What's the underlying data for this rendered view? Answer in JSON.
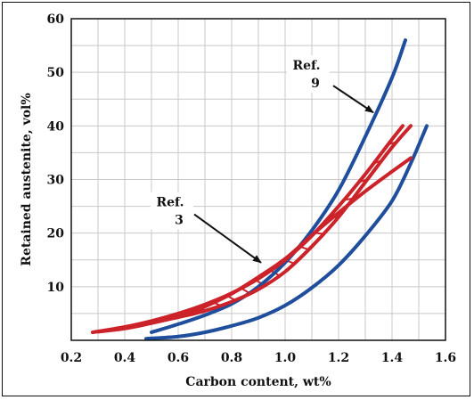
{
  "chart_data": {
    "type": "line",
    "title": "",
    "xlabel": "Carbon content, wt%",
    "ylabel": "Retained austenite, vol%",
    "xlim": [
      0.2,
      1.6
    ],
    "ylim": [
      0,
      60
    ],
    "grid": true,
    "x_ticks": [
      "0.2",
      "0.4",
      "0.6",
      "0.8",
      "1.0",
      "1.2",
      "1.4",
      "1.6"
    ],
    "y_ticks": [
      "10",
      "20",
      "30",
      "40",
      "50",
      "60"
    ],
    "colors": {
      "blue": "#1f4e9c",
      "red": "#cc2229"
    },
    "series": [
      {
        "group": "Ref. 9",
        "color": "blue",
        "points": [
          [
            0.5,
            1.5
          ],
          [
            0.6,
            3
          ],
          [
            0.7,
            4.7
          ],
          [
            0.8,
            6.8
          ],
          [
            0.9,
            10
          ],
          [
            1.0,
            14.5
          ],
          [
            1.1,
            20.5
          ],
          [
            1.2,
            28
          ],
          [
            1.3,
            38
          ],
          [
            1.4,
            49
          ],
          [
            1.45,
            56
          ]
        ]
      },
      {
        "group": "Ref. 9",
        "color": "blue",
        "points": [
          [
            0.48,
            0.3
          ],
          [
            0.6,
            0.7
          ],
          [
            0.7,
            1.5
          ],
          [
            0.8,
            2.7
          ],
          [
            0.9,
            4.2
          ],
          [
            1.0,
            6.5
          ],
          [
            1.1,
            9.8
          ],
          [
            1.2,
            14
          ],
          [
            1.3,
            19.5
          ],
          [
            1.4,
            26
          ],
          [
            1.47,
            33
          ],
          [
            1.53,
            40
          ]
        ]
      },
      {
        "group": "Ref. 3",
        "color": "red",
        "points": [
          [
            0.28,
            1.5
          ],
          [
            0.4,
            2.5
          ],
          [
            0.5,
            3.6
          ],
          [
            0.6,
            5
          ],
          [
            0.7,
            6.7
          ],
          [
            0.8,
            8.8
          ],
          [
            0.9,
            11.5
          ],
          [
            1.0,
            15
          ],
          [
            1.1,
            19.5
          ],
          [
            1.2,
            25
          ],
          [
            1.3,
            31
          ],
          [
            1.4,
            37.5
          ],
          [
            1.44,
            40
          ]
        ]
      },
      {
        "group": "Ref. 3",
        "color": "red",
        "points": [
          [
            0.3,
            1.6
          ],
          [
            0.4,
            2.2
          ],
          [
            0.5,
            3.2
          ],
          [
            0.6,
            4.5
          ],
          [
            0.7,
            6.3
          ],
          [
            0.8,
            8.7
          ],
          [
            0.9,
            11.8
          ],
          [
            1.0,
            15.2
          ],
          [
            1.1,
            19.6
          ],
          [
            1.2,
            23.8
          ],
          [
            1.3,
            27.8
          ],
          [
            1.4,
            31.5
          ],
          [
            1.47,
            34
          ]
        ]
      },
      {
        "group": "Ref. 3",
        "color": "red",
        "points": [
          [
            0.5,
            3.2
          ],
          [
            0.6,
            4.3
          ],
          [
            0.7,
            5.5
          ],
          [
            0.8,
            7.2
          ],
          [
            0.9,
            9.5
          ],
          [
            1.0,
            12.8
          ],
          [
            1.1,
            17.5
          ],
          [
            1.2,
            23
          ],
          [
            1.3,
            29.5
          ],
          [
            1.4,
            36
          ],
          [
            1.47,
            40
          ]
        ]
      }
    ],
    "hatch": {
      "color": "red",
      "upper_series": 2,
      "lower_series": 4,
      "x_from": 0.56,
      "x_to": 1.42,
      "step": 0.055
    },
    "annotations": [
      {
        "id": "ref9",
        "lines": [
          "Ref.",
          "9"
        ],
        "text_at": [
          1.08,
          50.5
        ],
        "arrow_from": [
          1.18,
          47.5
        ],
        "arrow_to": [
          1.33,
          42.5
        ]
      },
      {
        "id": "ref3",
        "lines": [
          "Ref.",
          "3"
        ],
        "text_at": [
          0.57,
          25
        ],
        "arrow_from": [
          0.66,
          23.5
        ],
        "arrow_to": [
          0.91,
          14.5
        ]
      }
    ]
  }
}
